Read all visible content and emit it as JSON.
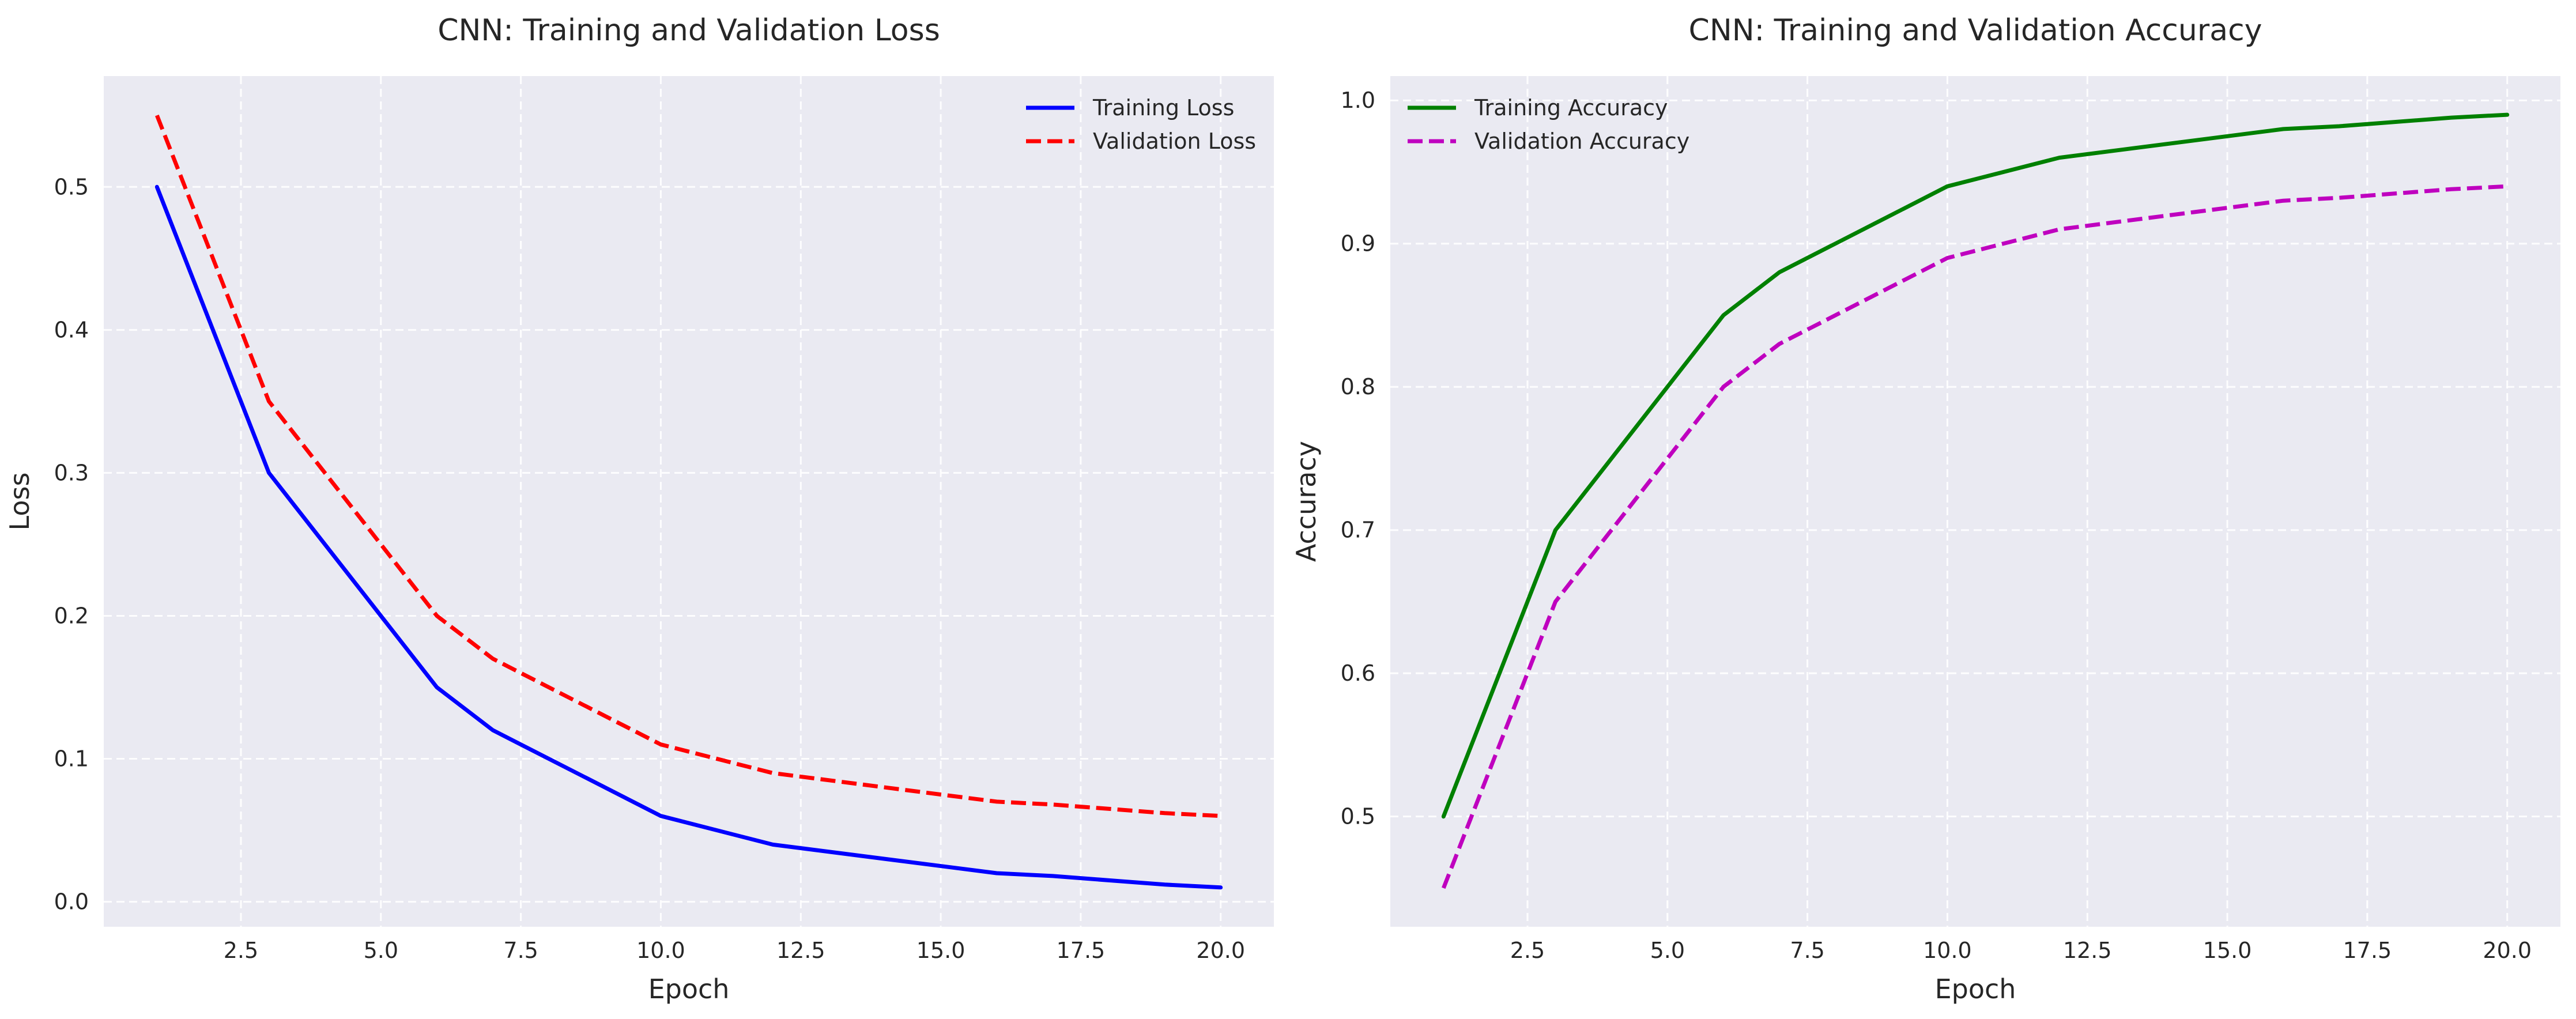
{
  "chart_data": [
    {
      "type": "line",
      "title": "CNN: Training and Validation Loss",
      "xlabel": "Epoch",
      "ylabel": "Loss",
      "xlim": [
        0.05,
        20.95
      ],
      "ylim": [
        -0.0175,
        0.5775
      ],
      "xticks": [
        2.5,
        5.0,
        7.5,
        10.0,
        12.5,
        15.0,
        17.5,
        20.0
      ],
      "xtick_labels": [
        "2.5",
        "5.0",
        "7.5",
        "10.0",
        "12.5",
        "15.0",
        "17.5",
        "20.0"
      ],
      "yticks": [
        0.0,
        0.1,
        0.2,
        0.3,
        0.4,
        0.5
      ],
      "ytick_labels": [
        "0.0",
        "0.1",
        "0.2",
        "0.3",
        "0.4",
        "0.5"
      ],
      "grid": true,
      "legend": "upper-right",
      "series": [
        {
          "name": "Training Loss",
          "color": "#0000ff",
          "dashed": false,
          "x": [
            1,
            3,
            6,
            7,
            10,
            12,
            16,
            17,
            19,
            20
          ],
          "y": [
            0.5,
            0.3,
            0.15,
            0.12,
            0.06,
            0.04,
            0.02,
            0.018,
            0.012,
            0.01
          ]
        },
        {
          "name": "Validation Loss",
          "color": "#ff0000",
          "dashed": true,
          "x": [
            1,
            3,
            6,
            7,
            10,
            12,
            16,
            17,
            19,
            20
          ],
          "y": [
            0.55,
            0.35,
            0.2,
            0.17,
            0.11,
            0.09,
            0.07,
            0.068,
            0.062,
            0.06
          ]
        }
      ]
    },
    {
      "type": "line",
      "title": "CNN: Training and Validation Accuracy",
      "xlabel": "Epoch",
      "ylabel": "Accuracy",
      "xlim": [
        0.05,
        20.95
      ],
      "ylim": [
        0.423,
        1.017
      ],
      "xticks": [
        2.5,
        5.0,
        7.5,
        10.0,
        12.5,
        15.0,
        17.5,
        20.0
      ],
      "xtick_labels": [
        "2.5",
        "5.0",
        "7.5",
        "10.0",
        "12.5",
        "15.0",
        "17.5",
        "20.0"
      ],
      "yticks": [
        0.5,
        0.6,
        0.7,
        0.8,
        0.9,
        1.0
      ],
      "ytick_labels": [
        "0.5",
        "0.6",
        "0.7",
        "0.8",
        "0.9",
        "1.0"
      ],
      "grid": true,
      "legend": "upper-left",
      "series": [
        {
          "name": "Training Accuracy",
          "color": "#008000",
          "dashed": false,
          "x": [
            1,
            3,
            6,
            7,
            10,
            12,
            16,
            17,
            19,
            20
          ],
          "y": [
            0.5,
            0.7,
            0.85,
            0.88,
            0.94,
            0.96,
            0.98,
            0.982,
            0.988,
            0.99
          ]
        },
        {
          "name": "Validation Accuracy",
          "color": "#bf00bf",
          "dashed": true,
          "x": [
            1,
            3,
            6,
            7,
            10,
            12,
            16,
            17,
            19,
            20
          ],
          "y": [
            0.45,
            0.65,
            0.8,
            0.83,
            0.89,
            0.91,
            0.93,
            0.932,
            0.938,
            0.94
          ]
        }
      ]
    }
  ],
  "colors": {
    "plot_background": "#eaeaf2",
    "grid": "#ffffff",
    "text": "#262626"
  }
}
